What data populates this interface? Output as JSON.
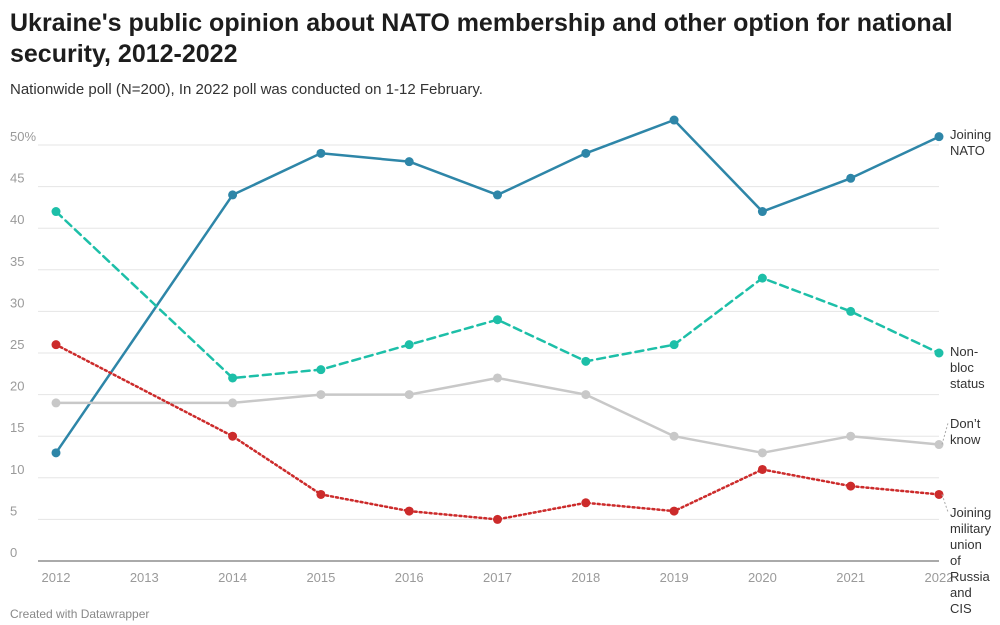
{
  "title": "Ukraine's public opinion about NATO membership and other option for national security, 2012-2022",
  "subtitle": "Nationwide poll (N=200), In 2022 poll was conducted on 1-12 February.",
  "footer": "Created with Datawrapper",
  "chart_data": {
    "type": "line",
    "x": [
      2012,
      2013,
      2014,
      2015,
      2016,
      2017,
      2018,
      2019,
      2020,
      2021,
      2022
    ],
    "xticks": [
      "2012",
      "2013",
      "2014",
      "2015",
      "2016",
      "2017",
      "2018",
      "2019",
      "2020",
      "2021",
      "2022"
    ],
    "ylim": [
      0,
      50
    ],
    "yticks": [
      "0",
      "5",
      "10",
      "15",
      "20",
      "25",
      "30",
      "35",
      "40",
      "45",
      "50%"
    ],
    "grid": true,
    "series": [
      {
        "name": "Joining NATO",
        "label_lines": [
          "Joining",
          "NATO"
        ],
        "color": "#2e86a8",
        "style": "solid",
        "points": [
          [
            2012,
            13
          ],
          [
            2014,
            44
          ],
          [
            2015,
            49
          ],
          [
            2016,
            48
          ],
          [
            2017,
            44
          ],
          [
            2018,
            49
          ],
          [
            2019,
            53
          ],
          [
            2020,
            42
          ],
          [
            2021,
            46
          ],
          [
            2022,
            51
          ]
        ]
      },
      {
        "name": "Non-bloc status",
        "label_lines": [
          "Non-",
          "bloc",
          "status"
        ],
        "color": "#1dbfa8",
        "style": "dashed",
        "points": [
          [
            2012,
            42
          ],
          [
            2014,
            22
          ],
          [
            2015,
            23
          ],
          [
            2016,
            26
          ],
          [
            2017,
            29
          ],
          [
            2018,
            24
          ],
          [
            2019,
            26
          ],
          [
            2020,
            34
          ],
          [
            2021,
            30
          ],
          [
            2022,
            25
          ]
        ]
      },
      {
        "name": "Don’t know",
        "label_lines": [
          "Don’t",
          "know"
        ],
        "color": "#c8c8c8",
        "style": "solid",
        "points": [
          [
            2012,
            19
          ],
          [
            2014,
            19
          ],
          [
            2015,
            20
          ],
          [
            2016,
            20
          ],
          [
            2017,
            22
          ],
          [
            2018,
            20
          ],
          [
            2019,
            15
          ],
          [
            2020,
            13
          ],
          [
            2021,
            15
          ],
          [
            2022,
            14
          ]
        ]
      },
      {
        "name": "Joining military union of Russia and CIS",
        "label_lines": [
          "Joining",
          "military",
          "union",
          "of",
          "Russia",
          "and",
          "CIS"
        ],
        "color": "#cc2b2b",
        "style": "dotted",
        "points": [
          [
            2012,
            26
          ],
          [
            2014,
            15
          ],
          [
            2015,
            8
          ],
          [
            2016,
            6
          ],
          [
            2017,
            5
          ],
          [
            2018,
            7
          ],
          [
            2019,
            6
          ],
          [
            2020,
            11
          ],
          [
            2021,
            9
          ],
          [
            2022,
            8
          ]
        ]
      }
    ]
  }
}
